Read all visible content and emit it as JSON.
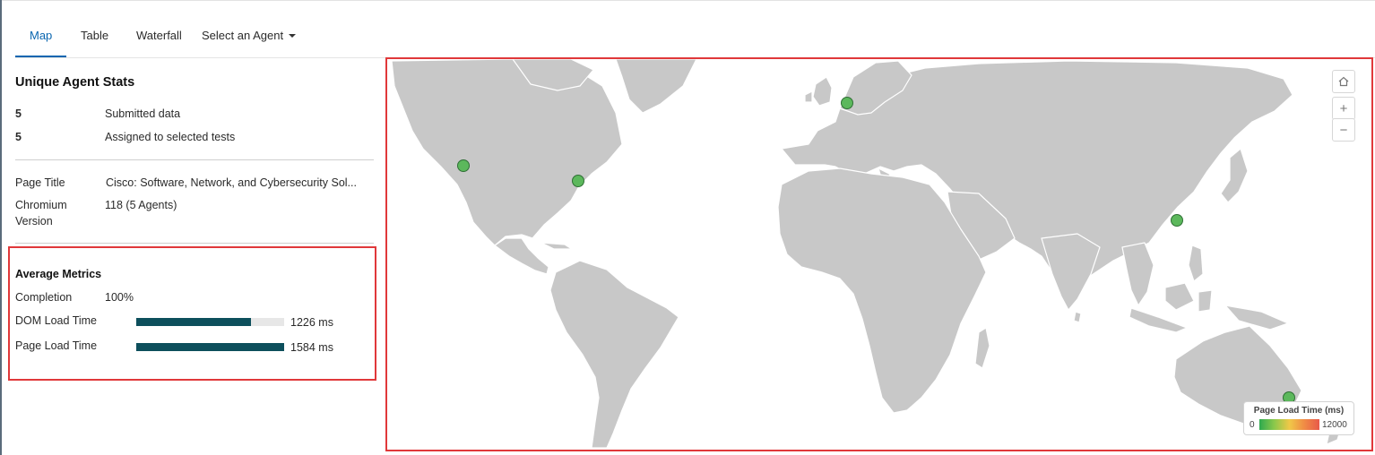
{
  "tabs": [
    {
      "label": "Map",
      "active": true
    },
    {
      "label": "Table",
      "active": false
    },
    {
      "label": "Waterfall",
      "active": false
    },
    {
      "label": "Select an Agent",
      "active": false
    }
  ],
  "agent_stats": {
    "title": "Unique Agent Stats",
    "rows": [
      {
        "value": "5",
        "label": "Submitted data"
      },
      {
        "value": "5",
        "label": "Assigned to selected tests"
      }
    ]
  },
  "details": {
    "page_title_label": "Page Title",
    "page_title_value": "Cisco: Software, Network, and Cybersecurity Sol...",
    "chromium_label_1": "Chromium",
    "chromium_label_2": "Version",
    "chromium_value": "118 (5 Agents)"
  },
  "metrics": {
    "title": "Average Metrics",
    "completion_label": "Completion",
    "completion_value": "100%",
    "dom_label": "DOM Load Time",
    "dom_value": "1226 ms",
    "dom_fraction": 0.774,
    "page_label": "Page Load Time",
    "page_value": "1584 ms",
    "page_fraction": 1.0
  },
  "map": {
    "legend_title": "Page Load Time (ms)",
    "legend_min": "0",
    "legend_max": "12000",
    "controls": [
      "home-icon",
      "zoom-in-icon",
      "zoom-out-icon"
    ],
    "agent_color": "#5cb85c",
    "land_color": "#c8c8c8"
  }
}
